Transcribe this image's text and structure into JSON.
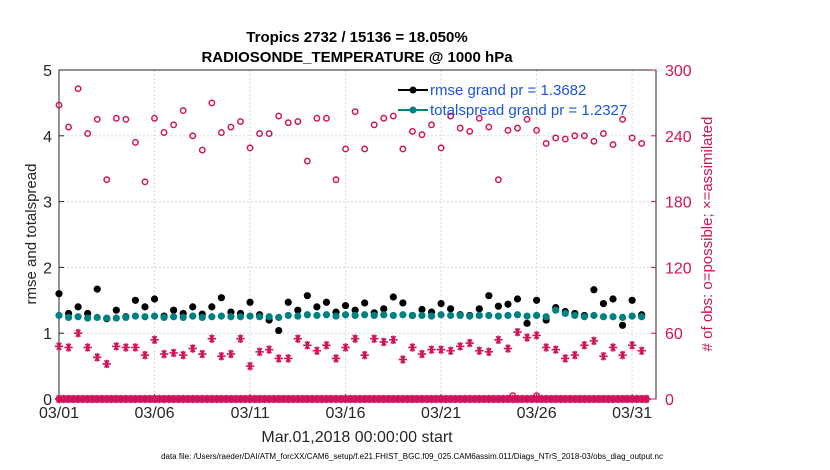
{
  "chart_data": {
    "type": "line",
    "title_line1": "Tropics 2732 / 15136 = 18.050%",
    "title_line2": "RADIOSONDE_TEMPERATURE @ 1000 hPa",
    "xlabel": "Mar.01,2018 00:00:00 start",
    "ylabel_left": "rmse and totalspread",
    "ylabel_right": "# of obs: o=possible; ×=assimilated",
    "footer": "data file: /Users/raeder/DAI/ATM_forcXX/CAM6_setup/f.e21.FHIST_BGC.f09_025.CAM6assim.011/Diags_NTrS_2018-03/obs_diag_output.nc",
    "x_tick_labels": [
      "03/01",
      "03/06",
      "03/11",
      "03/16",
      "03/21",
      "03/26",
      "03/31"
    ],
    "x_tick_days": [
      0,
      5,
      10,
      15,
      20,
      25,
      30
    ],
    "xlim": [
      0,
      31.25
    ],
    "ylim_left": [
      0,
      5
    ],
    "ylim_right": [
      0,
      300
    ],
    "left_ticks": [
      "0",
      "1",
      "2",
      "3",
      "4",
      "5"
    ],
    "right_ticks": [
      "0",
      "60",
      "120",
      "180",
      "240",
      "300"
    ],
    "legend": {
      "rmse_label": "rmse grand pr = 1.3682",
      "spread_label": "totalspread grand pr = 1.2327"
    },
    "colors": {
      "rmse": "#000000",
      "spread": "#008080",
      "obs": "#d0135a",
      "legend_text": "#1a56d6"
    },
    "series": [
      {
        "name": "rmse",
        "axis": "left",
        "x": [
          0.0,
          0.5,
          1.0,
          1.5,
          2.0,
          2.5,
          3.0,
          3.5,
          4.0,
          4.5,
          5.0,
          5.5,
          6.0,
          6.5,
          7.0,
          7.5,
          8.0,
          8.5,
          9.0,
          9.5,
          10.0,
          10.5,
          11.0,
          11.5,
          12.0,
          12.5,
          13.0,
          13.5,
          14.0,
          14.5,
          15.0,
          15.5,
          16.0,
          16.5,
          17.0,
          17.5,
          18.0,
          18.5,
          19.0,
          19.5,
          20.0,
          20.5,
          21.0,
          21.5,
          22.0,
          22.5,
          23.0,
          23.5,
          24.0,
          24.5,
          25.0,
          25.5,
          26.0,
          26.5,
          27.0,
          27.5,
          28.0,
          28.5,
          29.0,
          29.5,
          30.0,
          30.5
        ],
        "values": [
          1.6,
          1.3,
          1.4,
          1.3,
          1.67,
          1.22,
          1.35,
          1.25,
          1.5,
          1.4,
          1.52,
          1.26,
          1.35,
          1.3,
          1.4,
          1.29,
          1.4,
          1.54,
          1.32,
          1.3,
          1.47,
          1.28,
          1.2,
          1.04,
          1.47,
          1.35,
          1.57,
          1.4,
          1.47,
          1.32,
          1.42,
          1.35,
          1.46,
          1.31,
          1.37,
          1.55,
          1.46,
          1.27,
          1.36,
          1.32,
          1.45,
          1.37,
          1.28,
          1.27,
          1.37,
          1.57,
          1.41,
          1.44,
          1.52,
          1.15,
          1.5,
          1.2,
          1.39,
          1.33,
          1.3,
          1.27,
          1.66,
          1.45,
          1.52,
          1.12,
          1.5,
          1.28
        ]
      },
      {
        "name": "totalspread",
        "axis": "left",
        "x": [
          0.0,
          0.5,
          1.0,
          1.5,
          2.0,
          2.5,
          3.0,
          3.5,
          4.0,
          4.5,
          5.0,
          5.5,
          6.0,
          6.5,
          7.0,
          7.5,
          8.0,
          8.5,
          9.0,
          9.5,
          10.0,
          10.5,
          11.0,
          11.5,
          12.0,
          12.5,
          13.0,
          13.5,
          14.0,
          14.5,
          15.0,
          15.5,
          16.0,
          16.5,
          17.0,
          17.5,
          18.0,
          18.5,
          19.0,
          19.5,
          20.0,
          20.5,
          21.0,
          21.5,
          22.0,
          22.5,
          23.0,
          23.5,
          24.0,
          24.5,
          25.0,
          25.5,
          26.0,
          26.5,
          27.0,
          27.5,
          28.0,
          28.5,
          29.0,
          29.5,
          30.0,
          30.5
        ],
        "values": [
          1.27,
          1.24,
          1.25,
          1.23,
          1.24,
          1.23,
          1.23,
          1.24,
          1.26,
          1.25,
          1.26,
          1.24,
          1.25,
          1.24,
          1.26,
          1.24,
          1.25,
          1.26,
          1.25,
          1.25,
          1.26,
          1.25,
          1.25,
          1.24,
          1.27,
          1.26,
          1.28,
          1.27,
          1.28,
          1.26,
          1.28,
          1.27,
          1.28,
          1.27,
          1.28,
          1.27,
          1.28,
          1.27,
          1.27,
          1.26,
          1.28,
          1.27,
          1.27,
          1.26,
          1.27,
          1.27,
          1.26,
          1.27,
          1.28,
          1.26,
          1.27,
          1.25,
          1.35,
          1.3,
          1.27,
          1.25,
          1.27,
          1.25,
          1.25,
          1.24,
          1.26,
          1.25
        ]
      },
      {
        "name": "obs_possible",
        "axis": "right",
        "marker": "circle",
        "x": [
          0.0,
          0.5,
          1.0,
          1.5,
          2.0,
          2.5,
          3.0,
          3.5,
          4.0,
          4.5,
          5.0,
          5.5,
          6.0,
          6.5,
          7.0,
          7.5,
          8.0,
          8.5,
          9.0,
          9.5,
          10.0,
          10.5,
          11.0,
          11.5,
          12.0,
          12.5,
          13.0,
          13.5,
          14.0,
          14.5,
          15.0,
          15.5,
          16.0,
          16.5,
          17.0,
          17.5,
          18.0,
          18.5,
          19.0,
          19.5,
          20.0,
          20.5,
          21.0,
          21.5,
          22.0,
          22.5,
          23.0,
          23.5,
          24.0,
          24.5,
          25.0,
          25.5,
          26.0,
          26.5,
          27.0,
          27.5,
          28.0,
          28.5,
          29.0,
          29.5,
          30.0,
          30.5
        ],
        "values": [
          268,
          248,
          283,
          242,
          255,
          200,
          256,
          255,
          234,
          198,
          256,
          243,
          250,
          263,
          240,
          227,
          270,
          243,
          248,
          253,
          229,
          242,
          242,
          258,
          252,
          253,
          217,
          256,
          256,
          200,
          228,
          262,
          228,
          250,
          256,
          258,
          228,
          244,
          241,
          250,
          229,
          258,
          247,
          244,
          256,
          248,
          200,
          245,
          247,
          255,
          245,
          233,
          238,
          237,
          240,
          240,
          235,
          242,
          232,
          255,
          238,
          233
        ]
      },
      {
        "name": "obs_assimilated",
        "axis": "right",
        "marker": "asterisk",
        "x": [
          0.0,
          0.5,
          1.0,
          1.5,
          2.0,
          2.5,
          3.0,
          3.5,
          4.0,
          4.5,
          5.0,
          5.5,
          6.0,
          6.5,
          7.0,
          7.5,
          8.0,
          8.5,
          9.0,
          9.5,
          10.0,
          10.5,
          11.0,
          11.5,
          12.0,
          12.5,
          13.0,
          13.5,
          14.0,
          14.5,
          15.0,
          15.5,
          16.0,
          16.5,
          17.0,
          17.5,
          18.0,
          18.5,
          19.0,
          19.5,
          20.0,
          20.5,
          21.0,
          21.5,
          22.0,
          22.5,
          23.0,
          23.5,
          24.0,
          24.5,
          25.0,
          25.5,
          26.0,
          26.5,
          27.0,
          27.5,
          28.0,
          28.5,
          29.0,
          29.5,
          30.0,
          30.5
        ],
        "values": [
          48,
          47,
          60,
          47,
          38,
          32,
          48,
          47,
          47,
          40,
          54,
          41,
          42,
          40,
          46,
          41,
          55,
          39,
          41,
          55,
          30,
          43,
          45,
          37,
          37,
          55,
          49,
          44,
          49,
          37,
          47,
          55,
          40,
          55,
          52,
          54,
          36,
          47,
          41,
          45,
          45,
          44,
          48,
          51,
          44,
          43,
          54,
          46,
          61,
          56,
          58,
          47,
          45,
          37,
          40,
          49,
          53,
          39,
          47,
          40,
          49,
          44
        ]
      },
      {
        "name": "obs_zero_row",
        "axis": "right",
        "marker": "circle+asterisk",
        "x": [
          0.0,
          0.25,
          0.5,
          0.75,
          1.0,
          1.25,
          1.5,
          1.75,
          2.0,
          2.25,
          2.5,
          2.75,
          3.0,
          3.25,
          3.5,
          3.75,
          4.0,
          4.25,
          4.5,
          4.75,
          5.0,
          5.25,
          5.5,
          5.75,
          6.0,
          6.25,
          6.5,
          6.75,
          7.0,
          7.25,
          7.5,
          7.75,
          8.0,
          8.25,
          8.5,
          8.75,
          9.0,
          9.25,
          9.5,
          9.75,
          10.0,
          10.25,
          10.5,
          10.75,
          11.0,
          11.25,
          11.5,
          11.75,
          12.0,
          12.25,
          12.5,
          12.75,
          13.0,
          13.25,
          13.5,
          13.75,
          14.0,
          14.25,
          14.5,
          14.75,
          15.0,
          15.25,
          15.5,
          15.75,
          16.0,
          16.25,
          16.5,
          16.75,
          17.0,
          17.25,
          17.5,
          17.75,
          18.0,
          18.25,
          18.5,
          18.75,
          19.0,
          19.25,
          19.5,
          19.75,
          20.0,
          20.25,
          20.5,
          20.75,
          21.0,
          21.25,
          21.5,
          21.75,
          22.0,
          22.25,
          22.5,
          22.75,
          23.0,
          23.25,
          23.5,
          23.75,
          24.0,
          24.25,
          24.5,
          24.75,
          25.0,
          25.25,
          25.5,
          25.75,
          26.0,
          26.25,
          26.5,
          26.75,
          27.0,
          27.25,
          27.5,
          27.75,
          28.0,
          28.25,
          28.5,
          28.75,
          29.0,
          29.25,
          29.5,
          29.75,
          30.0,
          30.25,
          30.5,
          30.75
        ],
        "values": [
          0,
          0,
          0,
          0,
          0,
          0,
          0,
          0,
          0,
          0,
          0,
          0,
          0,
          0,
          0,
          0,
          0,
          0,
          0,
          0,
          0,
          0,
          0,
          0,
          0,
          0,
          0,
          0,
          0,
          0,
          0,
          0,
          0,
          0,
          0,
          0,
          0,
          0,
          0,
          0,
          0,
          0,
          0,
          0,
          0,
          0,
          0,
          0,
          0,
          0,
          0,
          0,
          0,
          0,
          0,
          0,
          0,
          0,
          0,
          0,
          0,
          0,
          0,
          0,
          0,
          0,
          0,
          0,
          0,
          0,
          0,
          0,
          0,
          0,
          0,
          0,
          0,
          0,
          0,
          0,
          0,
          0,
          0,
          0,
          0,
          0,
          0,
          0,
          0,
          0,
          0,
          0,
          0,
          0,
          0,
          0,
          0,
          0,
          0,
          0,
          0,
          0,
          0,
          0,
          0,
          0,
          0,
          0,
          0,
          0,
          0,
          0,
          0,
          0,
          0,
          0,
          0,
          0,
          0,
          0,
          0,
          0,
          0,
          0
        ]
      },
      {
        "name": "obs_small_possible",
        "axis": "right",
        "marker": "circle",
        "x": [
          23.75,
          25.0
        ],
        "values": [
          3,
          3
        ]
      }
    ]
  }
}
